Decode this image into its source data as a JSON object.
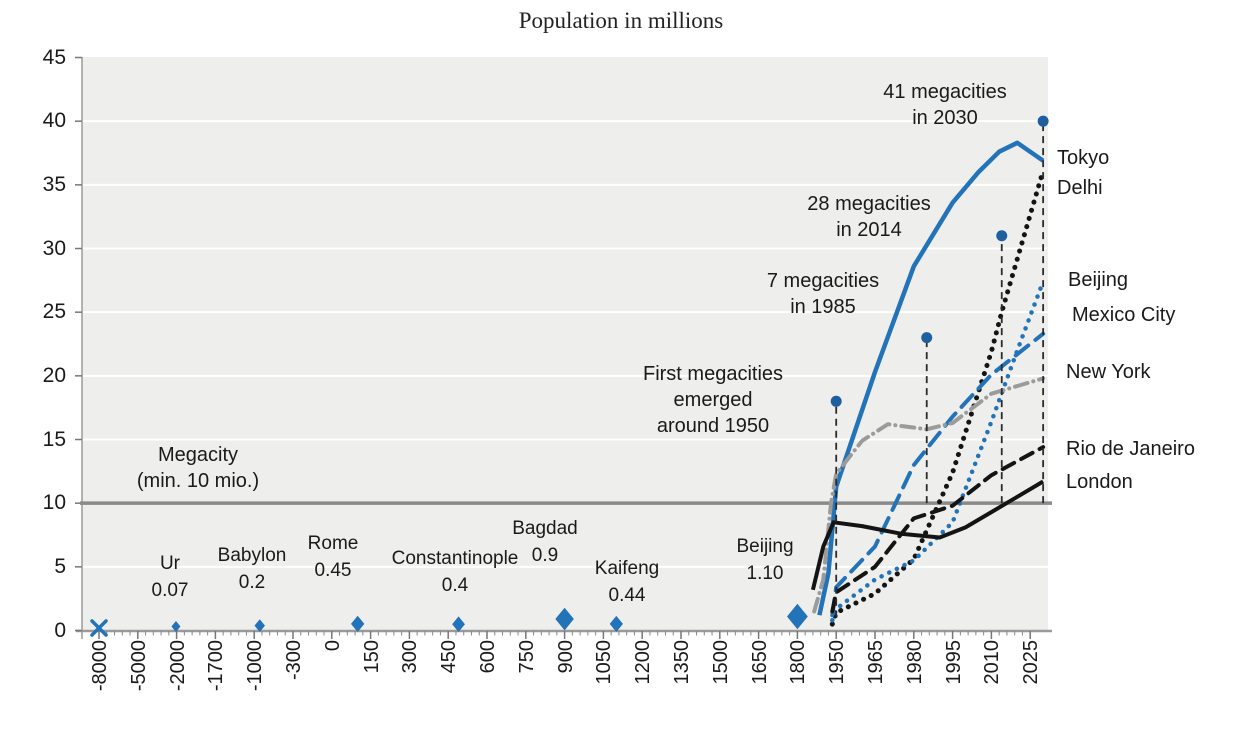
{
  "title": "Population in millions",
  "chart_data": {
    "type": "line",
    "title": "Population in millions",
    "ylim": [
      0,
      45
    ],
    "y_ticks": [
      0,
      5,
      10,
      15,
      20,
      25,
      30,
      35,
      40,
      45
    ],
    "grid": "white horizontal gridlines on light gray plot area",
    "x_axis": {
      "scale": "non-linear category axis",
      "categories": [
        -8000,
        -5000,
        -2000,
        -1700,
        -1000,
        -300,
        0,
        150,
        300,
        450,
        600,
        750,
        900,
        1050,
        1200,
        1350,
        1500,
        1650,
        1800,
        1950,
        1965,
        1980,
        1995,
        2010,
        2025
      ],
      "labels": [
        "-8000",
        "-5000",
        "-2000",
        "-1700",
        "-1000",
        "-300",
        "0",
        "150",
        "300",
        "450",
        "600",
        "750",
        "900",
        "1050",
        "1200",
        "1350",
        "1500",
        "1650",
        "1800",
        "1950",
        "1965",
        "1980",
        "1995",
        "2010",
        "2025"
      ]
    },
    "threshold": {
      "value": 10,
      "label": "Megacity\n(min. 10 mio.)",
      "color": "#8a8a8a"
    },
    "historical_points": [
      {
        "id": "first_cities",
        "name": "",
        "year": -8000,
        "population": 0,
        "population_label": "",
        "marker": "x"
      },
      {
        "id": "ur",
        "name": "Ur",
        "year": -2050,
        "population": 0.07,
        "population_label": "0.07",
        "marker": "diamond"
      },
      {
        "id": "babylon",
        "name": "Babylon",
        "year": -900,
        "population": 0.2,
        "population_label": "0.2",
        "marker": "diamond"
      },
      {
        "id": "rome",
        "name": "Rome",
        "year": 100,
        "population": 0.45,
        "population_label": "0.45",
        "marker": "diamond"
      },
      {
        "id": "constantinople",
        "name": "Constantinople",
        "year": 490,
        "population": 0.4,
        "population_label": "0.4",
        "marker": "diamond"
      },
      {
        "id": "bagdad",
        "name": "Bagdad",
        "year": 900,
        "population": 0.9,
        "population_label": "0.9",
        "marker": "diamond"
      },
      {
        "id": "kaifeng",
        "name": "Kaifeng",
        "year": 1100,
        "population": 0.44,
        "population_label": "0.44",
        "marker": "diamond"
      },
      {
        "id": "beijing_1800",
        "name": "Beijing",
        "year": 1800,
        "population": 1.1,
        "population_label": "1.10",
        "marker": "diamond"
      }
    ],
    "series": [
      {
        "id": "tokyo",
        "label": "Tokyo",
        "color": "#2273b8",
        "dash_style": "solid",
        "width": 4.5,
        "points": [
          [
            1885,
            1.2
          ],
          [
            1920,
            4.5
          ],
          [
            1950,
            11.3
          ],
          [
            1965,
            20.3
          ],
          [
            1980,
            28.6
          ],
          [
            1995,
            33.6
          ],
          [
            2005,
            36.0
          ],
          [
            2013,
            37.6
          ],
          [
            2020,
            38.3
          ],
          [
            2030,
            36.9
          ]
        ]
      },
      {
        "id": "delhi",
        "label": "Delhi",
        "color": "#141414",
        "dash_style": "dotted",
        "width": 5,
        "points": [
          [
            1935,
            0.5
          ],
          [
            1950,
            1.4
          ],
          [
            1965,
            2.9
          ],
          [
            1980,
            5.6
          ],
          [
            1995,
            12.4
          ],
          [
            2010,
            21.9
          ],
          [
            2014,
            25.0
          ],
          [
            2030,
            36.1
          ]
        ]
      },
      {
        "id": "beijing",
        "label": "Beijing",
        "color": "#2273b8",
        "dash_style": "dotted",
        "width": 4.5,
        "points": [
          [
            1935,
            0.8
          ],
          [
            1950,
            1.7
          ],
          [
            1965,
            4.0
          ],
          [
            1980,
            5.5
          ],
          [
            1995,
            8.5
          ],
          [
            2010,
            16.4
          ],
          [
            2020,
            22.0
          ],
          [
            2030,
            27.4
          ]
        ]
      },
      {
        "id": "mexico_city",
        "label": "Mexico City",
        "color": "#2273b8",
        "dash_style": "long-dash",
        "width": 4,
        "points": [
          [
            1935,
            1.2
          ],
          [
            1950,
            3.4
          ],
          [
            1965,
            6.6
          ],
          [
            1980,
            13.0
          ],
          [
            1995,
            16.8
          ],
          [
            2010,
            20.1
          ],
          [
            2030,
            23.3
          ]
        ]
      },
      {
        "id": "new_york",
        "label": "New York",
        "color": "#9b9b9b",
        "dash_style": "dash-dot",
        "width": 4,
        "points": [
          [
            1865,
            1.5
          ],
          [
            1900,
            4.0
          ],
          [
            1930,
            10.0
          ],
          [
            1950,
            12.3
          ],
          [
            1960,
            14.9
          ],
          [
            1970,
            16.2
          ],
          [
            1985,
            15.8
          ],
          [
            1995,
            16.3
          ],
          [
            2010,
            18.6
          ],
          [
            2030,
            19.8
          ]
        ]
      },
      {
        "id": "rio_de_janeiro",
        "label": "Rio de Janeiro",
        "color": "#141414",
        "dash_style": "dash",
        "width": 4,
        "points": [
          [
            1935,
            1.5
          ],
          [
            1950,
            3.0
          ],
          [
            1965,
            5.0
          ],
          [
            1980,
            8.8
          ],
          [
            1995,
            9.8
          ],
          [
            2010,
            12.2
          ],
          [
            2030,
            14.4
          ]
        ]
      },
      {
        "id": "london",
        "label": "London",
        "color": "#141414",
        "dash_style": "solid",
        "width": 4,
        "points": [
          [
            1860,
            3.2
          ],
          [
            1900,
            6.6
          ],
          [
            1940,
            8.5
          ],
          [
            1960,
            8.2
          ],
          [
            1975,
            7.6
          ],
          [
            1990,
            7.3
          ],
          [
            2000,
            8.1
          ],
          [
            2010,
            9.3
          ],
          [
            2020,
            10.5
          ],
          [
            2030,
            11.7
          ]
        ]
      }
    ],
    "megacity_milestones": [
      {
        "year": 1950,
        "count": 7,
        "dot_value": 18,
        "base_value": 1,
        "label": "First megacities\nemerged\naround 1950"
      },
      {
        "year": 1985,
        "count": 7,
        "dot_value": 23,
        "base_value": 10,
        "label": "7 megacities\nin 1985"
      },
      {
        "year": 2014,
        "count": 28,
        "dot_value": 31,
        "base_value": 10,
        "label": "28 megacities\nin 2014"
      },
      {
        "year": 2030,
        "count": 41,
        "dot_value": 40,
        "base_value": 10,
        "label": "41 megacities\nin 2030"
      }
    ],
    "colors": {
      "blue": "#2273b8",
      "dot_blue": "#1d5f9f",
      "black": "#141414",
      "gray_line": "#9b9b9b",
      "threshold_gray": "#8a8a8a",
      "plot_bg": "#eeeeec",
      "gridline": "#ffffff",
      "axis": "#9a9a9a"
    }
  }
}
